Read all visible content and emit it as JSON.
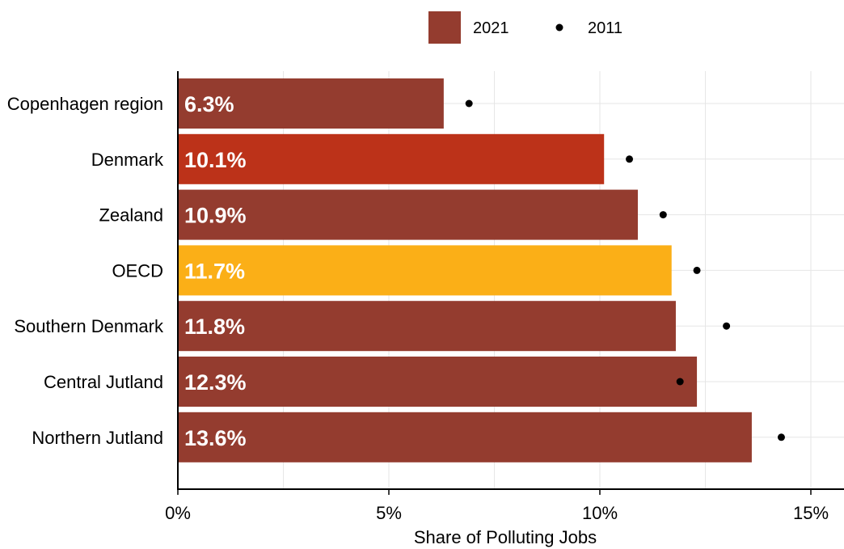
{
  "chart_data": {
    "type": "bar",
    "orientation": "horizontal",
    "categories": [
      "Copenhagen region",
      "Denmark",
      "Zealand",
      "OECD",
      "Southern Denmark",
      "Central Jutland",
      "Northern Jutland"
    ],
    "series": [
      {
        "name": "2021",
        "values": [
          6.3,
          10.1,
          10.9,
          11.7,
          11.8,
          12.3,
          13.6
        ],
        "data_labels": [
          "6.3%",
          "10.1%",
          "10.9%",
          "11.7%",
          "11.8%",
          "12.3%",
          "13.6%"
        ],
        "colors": [
          "#943C2F",
          "#BC3219",
          "#943C2F",
          "#FBAF17",
          "#943C2F",
          "#943C2F",
          "#943C2F"
        ],
        "marker": "bar"
      },
      {
        "name": "2011",
        "values": [
          6.9,
          10.7,
          11.5,
          12.3,
          13.0,
          11.9,
          14.3
        ],
        "color": "#000000",
        "marker": "dot"
      }
    ],
    "xlabel": "Share of Polluting Jobs",
    "ylabel": "",
    "xlim": [
      0,
      15.8
    ],
    "xticks": [
      0,
      5,
      10,
      15
    ],
    "xtick_labels": [
      "0%",
      "5%",
      "10%",
      "15%"
    ],
    "grid": true,
    "legend_position": "top"
  }
}
